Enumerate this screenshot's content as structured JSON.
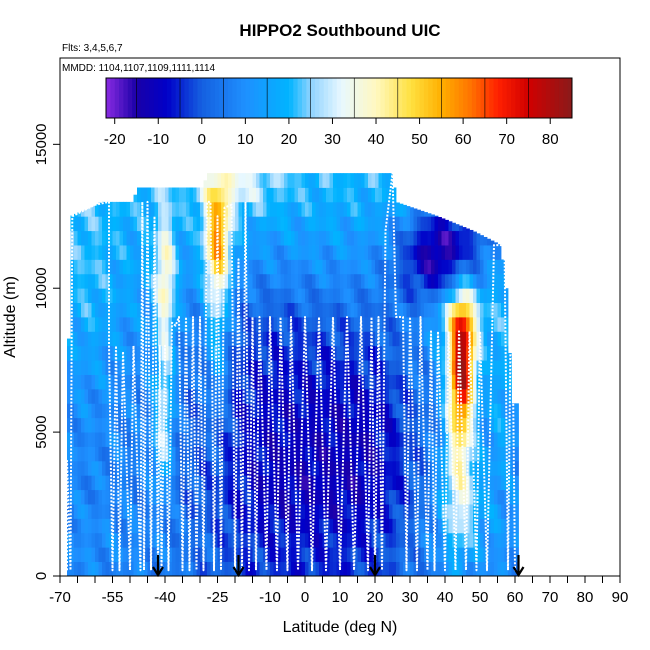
{
  "chart_data": {
    "type": "heatmap",
    "title": "HIPPO2 Southbound UIC",
    "subtitle_flights": "Flts: 3,4,5,6,7",
    "subtitle_dates": "MMDD: 1104,1107,1109,1111,1114",
    "xlabel": "Latitude (deg N)",
    "ylabel": "Altitude (m)",
    "xlim": [
      -70,
      90
    ],
    "ylim": [
      0,
      18000
    ],
    "x_ticks": [
      -70,
      -55,
      -40,
      -25,
      -10,
      0,
      10,
      20,
      30,
      40,
      50,
      60,
      70,
      80,
      90
    ],
    "x_minor_ticks": [
      -65,
      -60,
      -50,
      -45,
      -35,
      -30,
      -20,
      -15,
      -5,
      5,
      15,
      25,
      35,
      45,
      55,
      65,
      75,
      85
    ],
    "y_ticks": [
      0,
      5000,
      10000,
      15000
    ],
    "colorbar": {
      "range": [
        -22,
        85
      ],
      "ticks": [
        -20,
        -10,
        0,
        10,
        20,
        30,
        40,
        50,
        60,
        70,
        80
      ],
      "stops": [
        {
          "v": -22,
          "c": "#8a2be2"
        },
        {
          "v": -15,
          "c": "#1a00a8"
        },
        {
          "v": -8,
          "c": "#0000c8"
        },
        {
          "v": 0,
          "c": "#1560e0"
        },
        {
          "v": 10,
          "c": "#1e90ff"
        },
        {
          "v": 20,
          "c": "#00b4ff"
        },
        {
          "v": 25,
          "c": "#8fd3ff"
        },
        {
          "v": 32,
          "c": "#e8f8ff"
        },
        {
          "v": 40,
          "c": "#fff8c0"
        },
        {
          "v": 48,
          "c": "#ffe040"
        },
        {
          "v": 55,
          "c": "#ffb000"
        },
        {
          "v": 62,
          "c": "#ff7000"
        },
        {
          "v": 68,
          "c": "#ff2000"
        },
        {
          "v": 75,
          "c": "#d00000"
        },
        {
          "v": 85,
          "c": "#8b1a1a"
        }
      ]
    },
    "field": {
      "x_range": [
        -68,
        61
      ],
      "altitude_bin_m": 500,
      "bins": 28,
      "top_altitude_by_lat": [
        {
          "x": -68,
          "top": 4000
        },
        {
          "x": -67,
          "top": 12500
        },
        {
          "x": -58,
          "top": 13000
        },
        {
          "x": -49,
          "top": 13000
        },
        {
          "x": -48,
          "top": 13500
        },
        {
          "x": -29,
          "top": 13500
        },
        {
          "x": -28,
          "top": 14000
        },
        {
          "x": 25,
          "top": 14000
        },
        {
          "x": 26,
          "top": 13000
        },
        {
          "x": 38,
          "top": 12500
        },
        {
          "x": 48,
          "top": 12000
        },
        {
          "x": 56,
          "top": 11500
        },
        {
          "x": 58,
          "top": 9500
        },
        {
          "x": 59,
          "top": 6000
        },
        {
          "x": 60,
          "top": 6000
        }
      ],
      "background_profile": [
        {
          "alt": 0,
          "v": 8
        },
        {
          "alt": 1000,
          "v": 10
        },
        {
          "alt": 3000,
          "v": 8
        },
        {
          "alt": 6000,
          "v": 9
        },
        {
          "alt": 8000,
          "v": 12
        },
        {
          "alt": 10000,
          "v": 16
        },
        {
          "alt": 12000,
          "v": 18
        },
        {
          "alt": 14000,
          "v": 22
        }
      ],
      "features": [
        {
          "x": -20,
          "y": 13500,
          "sx": 8,
          "sy": 600,
          "a": 12
        },
        {
          "x": -25,
          "y": 11800,
          "sx": 2.5,
          "sy": 1200,
          "a": 35
        },
        {
          "x": -25,
          "y": 9000,
          "sx": 2.5,
          "sy": 2500,
          "a": 18
        },
        {
          "x": -40,
          "y": 10500,
          "sx": 2,
          "sy": 1500,
          "a": 22
        },
        {
          "x": -40,
          "y": 7000,
          "sx": 2,
          "sy": 2000,
          "a": 18
        },
        {
          "x": -41,
          "y": 4500,
          "sx": 2,
          "sy": 1200,
          "a": 14
        },
        {
          "x": -5,
          "y": 3000,
          "sx": 20,
          "sy": 3500,
          "a": -18
        },
        {
          "x": -10,
          "y": 8500,
          "sx": 18,
          "sy": 2200,
          "a": -10
        },
        {
          "x": 20,
          "y": 5000,
          "sx": 10,
          "sy": 4000,
          "a": -10
        },
        {
          "x": 37,
          "y": 11000,
          "sx": 8,
          "sy": 1200,
          "a": -25
        },
        {
          "x": 45,
          "y": 12000,
          "sx": 8,
          "sy": 1000,
          "a": -15
        },
        {
          "x": 45,
          "y": 7500,
          "sx": 2.5,
          "sy": 1500,
          "a": 55
        },
        {
          "x": 44,
          "y": 5000,
          "sx": 3,
          "sy": 2500,
          "a": 28
        },
        {
          "x": 44,
          "y": 9000,
          "sx": 6,
          "sy": 700,
          "a": 15
        },
        {
          "x": 45,
          "y": 2500,
          "sx": 6,
          "sy": 1200,
          "a": 10
        },
        {
          "x": -62,
          "y": 10000,
          "sx": 5,
          "sy": 2500,
          "a": 5
        },
        {
          "x": 56,
          "y": 6000,
          "sx": 3,
          "sy": 2500,
          "a": 8
        }
      ]
    },
    "flight_track": [
      [
        -68,
        200
      ],
      [
        -68,
        4000
      ],
      [
        -67,
        200
      ],
      [
        -66.5,
        12500
      ],
      [
        -60,
        12900
      ],
      [
        -56,
        13000
      ],
      [
        -56,
        8000
      ],
      [
        -55,
        200
      ],
      [
        -54,
        8000
      ],
      [
        -53,
        200
      ],
      [
        -52,
        7800
      ],
      [
        -50,
        200
      ],
      [
        -49,
        8000
      ],
      [
        -47,
        200
      ],
      [
        -46.5,
        13000
      ],
      [
        -46,
        200
      ],
      [
        -45,
        13000
      ],
      [
        -44,
        200
      ],
      [
        -43,
        12500
      ],
      [
        -42,
        200
      ],
      [
        -41.5,
        8000
      ],
      [
        -41,
        200
      ],
      [
        -40,
        8000
      ],
      [
        -39,
        200
      ],
      [
        -38,
        8800
      ],
      [
        -37,
        8700
      ],
      [
        -36,
        9000
      ],
      [
        -35,
        200
      ],
      [
        -34,
        9000
      ],
      [
        -33,
        200
      ],
      [
        -32,
        9000
      ],
      [
        -31,
        200
      ],
      [
        -30,
        9000
      ],
      [
        -29,
        200
      ],
      [
        -28,
        13000
      ],
      [
        -27,
        13000
      ],
      [
        -26,
        200
      ],
      [
        -25,
        12500
      ],
      [
        -24,
        200
      ],
      [
        -23,
        12800
      ],
      [
        -21,
        12900
      ],
      [
        -20,
        200
      ],
      [
        -19,
        11000
      ],
      [
        -18,
        200
      ],
      [
        -17,
        13000
      ],
      [
        -16,
        200
      ],
      [
        -15,
        9000
      ],
      [
        -14,
        200
      ],
      [
        -13,
        9000
      ],
      [
        -11,
        200
      ],
      [
        -10,
        9000
      ],
      [
        -8,
        200
      ],
      [
        -7,
        9000
      ],
      [
        -5,
        200
      ],
      [
        -4,
        9000
      ],
      [
        -2,
        200
      ],
      [
        0,
        9000
      ],
      [
        2,
        200
      ],
      [
        4,
        9000
      ],
      [
        6,
        200
      ],
      [
        8,
        9000
      ],
      [
        10,
        200
      ],
      [
        12,
        9000
      ],
      [
        14,
        200
      ],
      [
        16,
        9000
      ],
      [
        18,
        200
      ],
      [
        19,
        9000
      ],
      [
        20,
        200
      ],
      [
        21,
        9000
      ],
      [
        22,
        200
      ],
      [
        23,
        12000
      ],
      [
        25,
        14000
      ],
      [
        26,
        9000
      ],
      [
        28,
        9000
      ],
      [
        29,
        200
      ],
      [
        30,
        9000
      ],
      [
        32,
        200
      ],
      [
        33,
        9000
      ],
      [
        35,
        200
      ],
      [
        36,
        8500
      ],
      [
        37,
        200
      ],
      [
        38,
        8500
      ],
      [
        40,
        200
      ],
      [
        41,
        8500
      ],
      [
        43,
        200
      ],
      [
        44,
        8500
      ],
      [
        46,
        200
      ],
      [
        47,
        8500
      ],
      [
        49,
        200
      ],
      [
        50,
        8500
      ],
      [
        52,
        200
      ],
      [
        54,
        11500
      ],
      [
        57,
        11500
      ],
      [
        58,
        200
      ],
      [
        59,
        11500
      ],
      [
        60,
        200
      ],
      [
        61,
        200
      ]
    ],
    "arrows_lat": [
      -42,
      -19,
      20,
      61
    ]
  }
}
